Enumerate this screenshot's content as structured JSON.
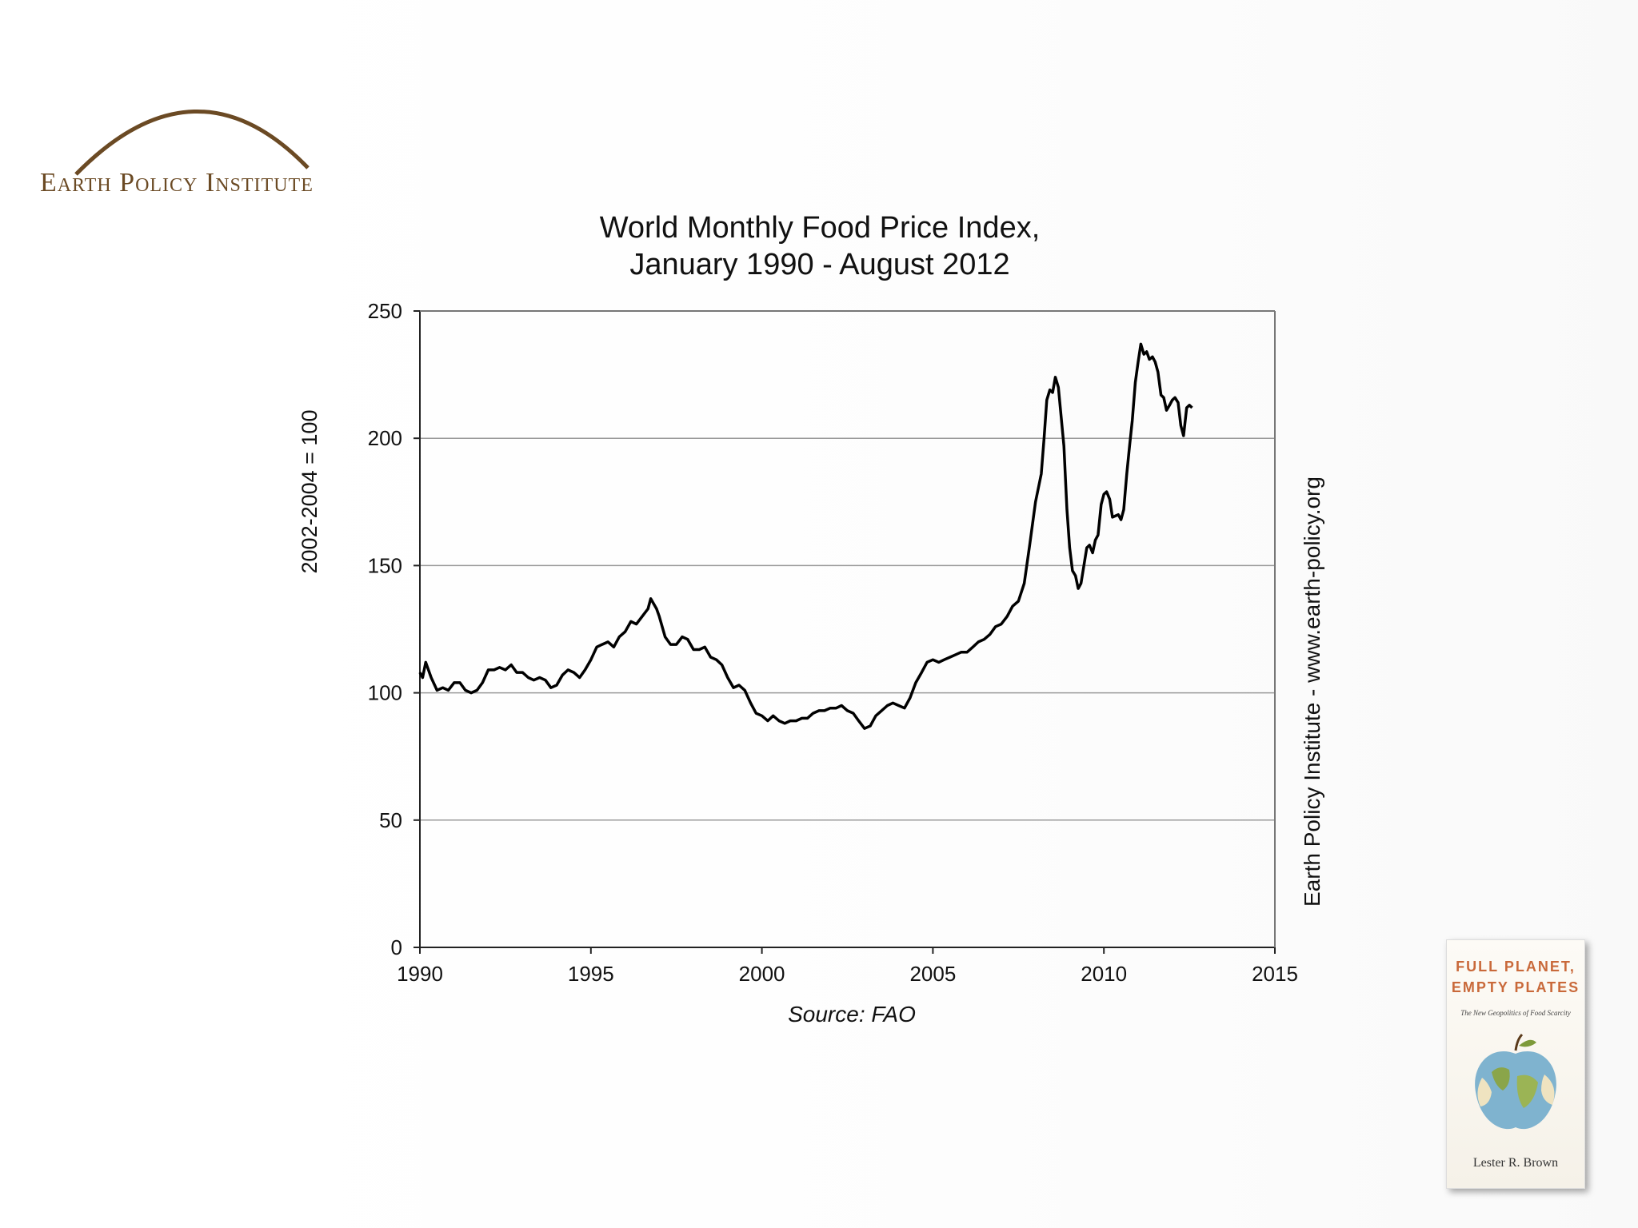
{
  "branding": {
    "org_name": "Earth Policy Institute",
    "logo_color": "#6b4a24"
  },
  "credit": "Earth Policy Institute - www.earth-policy.org",
  "book": {
    "title_line1": "FULL PLANET,",
    "title_line2": "EMPTY PLATES",
    "subtitle": "The New Geopolitics of Food Scarcity",
    "author": "Lester R. Brown",
    "accent_color": "#c9693a"
  },
  "chart_data": {
    "type": "line",
    "title_line1": "World Monthly Food Price Index,",
    "title_line2": "January 1990 - August 2012",
    "ylabel": "2002-2004 = 100",
    "xlabel": "",
    "source": "Source: FAO",
    "xlim": [
      1990,
      2015
    ],
    "ylim": [
      0,
      250
    ],
    "x_ticks": [
      1990,
      1995,
      2000,
      2005,
      2010,
      2015
    ],
    "y_ticks": [
      0,
      50,
      100,
      150,
      200,
      250
    ],
    "grid": "horizontal",
    "line_color": "#000000",
    "series": [
      {
        "values": [
          [
            1990.0,
            108
          ],
          [
            1990.08,
            106
          ],
          [
            1990.17,
            112
          ],
          [
            1990.33,
            106
          ],
          [
            1990.5,
            101
          ],
          [
            1990.67,
            102
          ],
          [
            1990.83,
            101
          ],
          [
            1991.0,
            104
          ],
          [
            1991.17,
            104
          ],
          [
            1991.33,
            101
          ],
          [
            1991.5,
            100
          ],
          [
            1991.67,
            101
          ],
          [
            1991.83,
            104
          ],
          [
            1992.0,
            109
          ],
          [
            1992.17,
            109
          ],
          [
            1992.33,
            110
          ],
          [
            1992.5,
            109
          ],
          [
            1992.67,
            111
          ],
          [
            1992.83,
            108
          ],
          [
            1993.0,
            108
          ],
          [
            1993.17,
            106
          ],
          [
            1993.33,
            105
          ],
          [
            1993.5,
            106
          ],
          [
            1993.67,
            105
          ],
          [
            1993.83,
            102
          ],
          [
            1994.0,
            103
          ],
          [
            1994.17,
            107
          ],
          [
            1994.33,
            109
          ],
          [
            1994.5,
            108
          ],
          [
            1994.67,
            106
          ],
          [
            1994.83,
            109
          ],
          [
            1995.0,
            113
          ],
          [
            1995.17,
            118
          ],
          [
            1995.33,
            119
          ],
          [
            1995.5,
            120
          ],
          [
            1995.67,
            118
          ],
          [
            1995.83,
            122
          ],
          [
            1996.0,
            124
          ],
          [
            1996.17,
            128
          ],
          [
            1996.33,
            127
          ],
          [
            1996.5,
            130
          ],
          [
            1996.67,
            133
          ],
          [
            1996.75,
            137
          ],
          [
            1996.92,
            133
          ],
          [
            1997.0,
            130
          ],
          [
            1997.17,
            122
          ],
          [
            1997.33,
            119
          ],
          [
            1997.5,
            119
          ],
          [
            1997.67,
            122
          ],
          [
            1997.83,
            121
          ],
          [
            1998.0,
            117
          ],
          [
            1998.17,
            117
          ],
          [
            1998.33,
            118
          ],
          [
            1998.5,
            114
          ],
          [
            1998.67,
            113
          ],
          [
            1998.83,
            111
          ],
          [
            1999.0,
            106
          ],
          [
            1999.17,
            102
          ],
          [
            1999.33,
            103
          ],
          [
            1999.5,
            101
          ],
          [
            1999.67,
            96
          ],
          [
            1999.83,
            92
          ],
          [
            2000.0,
            91
          ],
          [
            2000.17,
            89
          ],
          [
            2000.33,
            91
          ],
          [
            2000.5,
            89
          ],
          [
            2000.67,
            88
          ],
          [
            2000.83,
            89
          ],
          [
            2001.0,
            89
          ],
          [
            2001.17,
            90
          ],
          [
            2001.33,
            90
          ],
          [
            2001.5,
            92
          ],
          [
            2001.67,
            93
          ],
          [
            2001.83,
            93
          ],
          [
            2002.0,
            94
          ],
          [
            2002.17,
            94
          ],
          [
            2002.33,
            95
          ],
          [
            2002.5,
            93
          ],
          [
            2002.67,
            92
          ],
          [
            2002.83,
            89
          ],
          [
            2003.0,
            86
          ],
          [
            2003.17,
            87
          ],
          [
            2003.33,
            91
          ],
          [
            2003.5,
            93
          ],
          [
            2003.67,
            95
          ],
          [
            2003.83,
            96
          ],
          [
            2004.0,
            95
          ],
          [
            2004.17,
            94
          ],
          [
            2004.33,
            98
          ],
          [
            2004.5,
            104
          ],
          [
            2004.67,
            108
          ],
          [
            2004.83,
            112
          ],
          [
            2005.0,
            113
          ],
          [
            2005.17,
            112
          ],
          [
            2005.33,
            113
          ],
          [
            2005.5,
            114
          ],
          [
            2005.67,
            115
          ],
          [
            2005.83,
            116
          ],
          [
            2006.0,
            116
          ],
          [
            2006.17,
            118
          ],
          [
            2006.33,
            120
          ],
          [
            2006.5,
            121
          ],
          [
            2006.67,
            123
          ],
          [
            2006.83,
            126
          ],
          [
            2007.0,
            127
          ],
          [
            2007.17,
            130
          ],
          [
            2007.33,
            134
          ],
          [
            2007.5,
            136
          ],
          [
            2007.67,
            143
          ],
          [
            2007.83,
            158
          ],
          [
            2008.0,
            175
          ],
          [
            2008.17,
            186
          ],
          [
            2008.25,
            200
          ],
          [
            2008.33,
            215
          ],
          [
            2008.42,
            219
          ],
          [
            2008.5,
            218
          ],
          [
            2008.58,
            224
          ],
          [
            2008.67,
            220
          ],
          [
            2008.83,
            197
          ],
          [
            2008.92,
            172
          ],
          [
            2009.0,
            157
          ],
          [
            2009.08,
            148
          ],
          [
            2009.17,
            146
          ],
          [
            2009.25,
            141
          ],
          [
            2009.33,
            143
          ],
          [
            2009.5,
            157
          ],
          [
            2009.58,
            158
          ],
          [
            2009.67,
            155
          ],
          [
            2009.75,
            160
          ],
          [
            2009.83,
            162
          ],
          [
            2009.92,
            174
          ],
          [
            2010.0,
            178
          ],
          [
            2010.08,
            179
          ],
          [
            2010.17,
            176
          ],
          [
            2010.25,
            169
          ],
          [
            2010.42,
            170
          ],
          [
            2010.5,
            168
          ],
          [
            2010.58,
            172
          ],
          [
            2010.67,
            186
          ],
          [
            2010.75,
            197
          ],
          [
            2010.83,
            207
          ],
          [
            2010.92,
            222
          ],
          [
            2011.0,
            230
          ],
          [
            2011.08,
            237
          ],
          [
            2011.17,
            233
          ],
          [
            2011.25,
            234
          ],
          [
            2011.33,
            231
          ],
          [
            2011.42,
            232
          ],
          [
            2011.5,
            230
          ],
          [
            2011.58,
            226
          ],
          [
            2011.67,
            217
          ],
          [
            2011.75,
            216
          ],
          [
            2011.83,
            211
          ],
          [
            2011.92,
            213
          ],
          [
            2012.0,
            215
          ],
          [
            2012.08,
            216
          ],
          [
            2012.17,
            214
          ],
          [
            2012.25,
            205
          ],
          [
            2012.33,
            201
          ],
          [
            2012.42,
            212
          ],
          [
            2012.5,
            213
          ],
          [
            2012.58,
            212
          ]
        ]
      }
    ]
  }
}
